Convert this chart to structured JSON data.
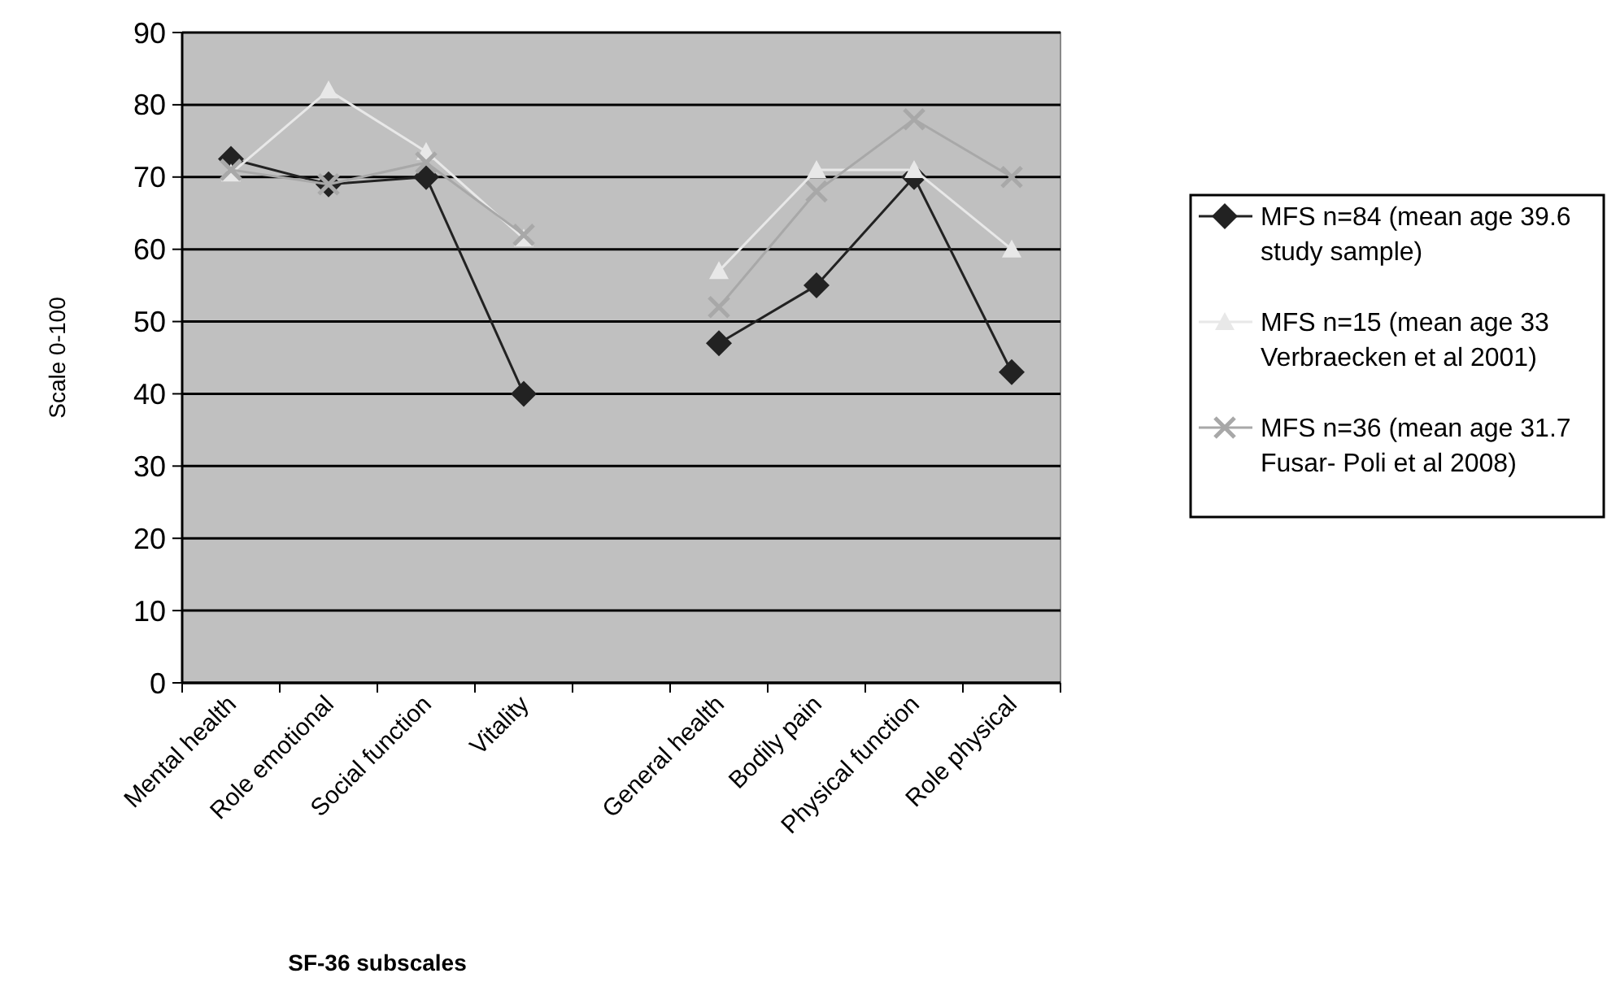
{
  "chart_data": {
    "type": "line",
    "xlabel": "SF-36 subscales",
    "ylabel": "Scale 0-100",
    "categories": [
      "Mental health",
      "Role emotional",
      "Social function",
      "Vitality",
      null,
      "General health",
      "Bodily pain",
      "Physical function",
      "Role physical"
    ],
    "ylim": [
      0,
      90
    ],
    "yticks": [
      0,
      10,
      20,
      30,
      40,
      50,
      60,
      70,
      80,
      90
    ],
    "grid": "y",
    "legend": "right",
    "series": [
      {
        "name": "MFS n=84 (mean age 39.6 study sample)",
        "color": "#222222",
        "marker": "diamond",
        "values": [
          72.5,
          69,
          70,
          40,
          null,
          47,
          55,
          70,
          43
        ]
      },
      {
        "name": "MFS n=15 (mean age 33 Verbraecken et al 2001)",
        "color": "#e8e8e8",
        "marker": "triangle",
        "values": [
          70.5,
          82,
          73.5,
          61.5,
          null,
          57,
          71,
          71,
          60
        ]
      },
      {
        "name": "MFS n=36 (mean age 31.7 Fusar- Poli et al 2008)",
        "color": "#a8a8a8",
        "marker": "cross",
        "values": [
          71,
          69,
          72,
          62,
          null,
          52,
          68,
          78,
          70
        ]
      }
    ]
  }
}
